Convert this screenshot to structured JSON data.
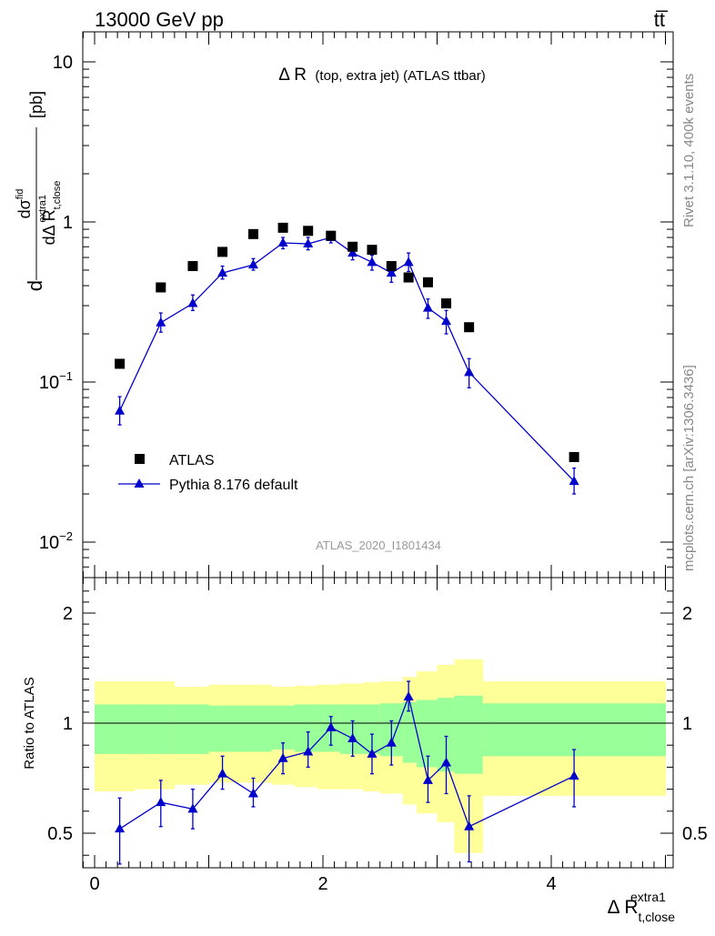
{
  "header": {
    "left": "13000 GeV pp",
    "right": "tt̅"
  },
  "chart_data": {
    "type": "scatter",
    "title": "Δ R",
    "title_small": "(top, extra jet) (ATLAS ttbar)",
    "ylabel": "[pb]",
    "ylabel_num": "dσ",
    "ylabel_num_sup": "fid",
    "ylabel_den": "dΔ R",
    "ylabel_den_sub": "t,close",
    "ylabel_den_sup": "extra1",
    "xlabel": "Δ R",
    "xlabel_sub": "t,close",
    "xlabel_sup": "extra1",
    "ratio_ylabel": "Ratio to ATLAS",
    "analysis_label": "ATLAS_2020_I1801434",
    "side_label_top": "Rivet 3.1.10,  400k events",
    "side_label_bottom": "mcplots.cern.ch [arXiv:1306.3436]",
    "xlim": [
      -0.15,
      5.1
    ],
    "ylim": [
      0.006,
      16
    ],
    "ratio_ylim": [
      0.35,
      2.3
    ],
    "y_scale": "log",
    "main_y_ticks": [
      {
        "v": 10,
        "base": "10",
        "exp": ""
      },
      {
        "v": 1,
        "base": "1",
        "exp": ""
      },
      {
        "v": 0.1,
        "base": "10",
        "exp": "−1"
      },
      {
        "v": 0.01,
        "base": "10",
        "exp": "−2"
      }
    ],
    "ratio_y_ticks": [
      "0.5",
      "1",
      "2"
    ],
    "x_ticks": [
      "0",
      "2",
      "4"
    ],
    "legend": [
      "ATLAS",
      "Pythia 8.176 default"
    ],
    "legend_position": "bottom-left",
    "bins": [
      {
        "lo": 0.0,
        "hi": 0.35,
        "x": 0.22,
        "data": 0.13,
        "mc": 0.066,
        "mc_lo": 0.054,
        "mc_hi": 0.081,
        "ratio": 0.52,
        "r_lo": 0.36,
        "r_hi": 0.66,
        "band1_lo": 0.86,
        "band1_hi": 1.17,
        "band2_lo": 0.69,
        "band2_hi": 1.38
      },
      {
        "lo": 0.35,
        "hi": 0.7,
        "x": 0.58,
        "data": 0.39,
        "mc": 0.235,
        "mc_lo": 0.205,
        "mc_hi": 0.27,
        "ratio": 0.64,
        "r_lo": 0.53,
        "r_hi": 0.74,
        "band1_lo": 0.86,
        "band1_hi": 1.17,
        "band2_lo": 0.7,
        "band2_hi": 1.38
      },
      {
        "lo": 0.7,
        "hi": 1.0,
        "x": 0.86,
        "data": 0.53,
        "mc": 0.31,
        "mc_lo": 0.28,
        "mc_hi": 0.35,
        "ratio": 0.61,
        "r_lo": 0.52,
        "r_hi": 0.7,
        "band1_lo": 0.86,
        "band1_hi": 1.17,
        "band2_lo": 0.72,
        "band2_hi": 1.33
      },
      {
        "lo": 1.0,
        "hi": 1.25,
        "x": 1.12,
        "data": 0.65,
        "mc": 0.48,
        "mc_lo": 0.44,
        "mc_hi": 0.53,
        "ratio": 0.77,
        "r_lo": 0.7,
        "r_hi": 0.85,
        "band1_lo": 0.87,
        "band1_hi": 1.16,
        "band2_lo": 0.73,
        "band2_hi": 1.35
      },
      {
        "lo": 1.25,
        "hi": 1.55,
        "x": 1.39,
        "data": 0.84,
        "mc": 0.54,
        "mc_lo": 0.5,
        "mc_hi": 0.59,
        "ratio": 0.68,
        "r_lo": 0.62,
        "r_hi": 0.75,
        "band1_lo": 0.87,
        "band1_hi": 1.16,
        "band2_lo": 0.73,
        "band2_hi": 1.35
      },
      {
        "lo": 1.55,
        "hi": 1.75,
        "x": 1.65,
        "data": 0.92,
        "mc": 0.74,
        "mc_lo": 0.68,
        "mc_hi": 0.8,
        "ratio": 0.84,
        "r_lo": 0.77,
        "r_hi": 0.91,
        "band1_lo": 0.88,
        "band1_hi": 1.16,
        "band2_lo": 0.72,
        "band2_hi": 1.33
      },
      {
        "lo": 1.75,
        "hi": 1.95,
        "x": 1.87,
        "data": 0.88,
        "mc": 0.73,
        "mc_lo": 0.67,
        "mc_hi": 0.8,
        "ratio": 0.87,
        "r_lo": 0.8,
        "r_hi": 0.96,
        "band1_lo": 0.87,
        "band1_hi": 1.17,
        "band2_lo": 0.71,
        "band2_hi": 1.34
      },
      {
        "lo": 1.95,
        "hi": 2.15,
        "x": 2.07,
        "data": 0.82,
        "mc": 0.8,
        "mc_lo": 0.74,
        "mc_hi": 0.87,
        "ratio": 0.98,
        "r_lo": 0.9,
        "r_hi": 1.06,
        "band1_lo": 0.87,
        "band1_hi": 1.17,
        "band2_lo": 0.7,
        "band2_hi": 1.35
      },
      {
        "lo": 2.15,
        "hi": 2.35,
        "x": 2.26,
        "data": 0.7,
        "mc": 0.64,
        "mc_lo": 0.58,
        "mc_hi": 0.71,
        "ratio": 0.93,
        "r_lo": 0.85,
        "r_hi": 1.02,
        "band1_lo": 0.86,
        "band1_hi": 1.17,
        "band2_lo": 0.7,
        "band2_hi": 1.36
      },
      {
        "lo": 2.35,
        "hi": 2.5,
        "x": 2.43,
        "data": 0.67,
        "mc": 0.56,
        "mc_lo": 0.5,
        "mc_hi": 0.62,
        "ratio": 0.86,
        "r_lo": 0.77,
        "r_hi": 0.95,
        "band1_lo": 0.86,
        "band1_hi": 1.17,
        "band2_lo": 0.69,
        "band2_hi": 1.37
      },
      {
        "lo": 2.5,
        "hi": 2.7,
        "x": 2.6,
        "data": 0.53,
        "mc": 0.48,
        "mc_lo": 0.42,
        "mc_hi": 0.54,
        "ratio": 0.91,
        "r_lo": 0.81,
        "r_hi": 1.02,
        "band1_lo": 0.85,
        "band1_hi": 1.18,
        "band2_lo": 0.68,
        "band2_hi": 1.38
      },
      {
        "lo": 2.7,
        "hi": 2.82,
        "x": 2.75,
        "data": 0.45,
        "mc": 0.56,
        "mc_lo": 0.49,
        "mc_hi": 0.64,
        "ratio": 1.24,
        "r_lo": 1.11,
        "r_hi": 1.38,
        "band1_lo": 0.82,
        "band1_hi": 1.19,
        "band2_lo": 0.63,
        "band2_hi": 1.42
      },
      {
        "lo": 2.82,
        "hi": 3.0,
        "x": 2.92,
        "data": 0.42,
        "mc": 0.29,
        "mc_lo": 0.25,
        "mc_hi": 0.33,
        "ratio": 0.74,
        "r_lo": 0.64,
        "r_hi": 0.85,
        "band1_lo": 0.8,
        "band1_hi": 1.21,
        "band2_lo": 0.59,
        "band2_hi": 1.47
      },
      {
        "lo": 3.0,
        "hi": 3.15,
        "x": 3.08,
        "data": 0.31,
        "mc": 0.24,
        "mc_lo": 0.2,
        "mc_hi": 0.28,
        "ratio": 0.82,
        "r_lo": 0.68,
        "r_hi": 0.94,
        "band1_lo": 0.78,
        "band1_hi": 1.23,
        "band2_lo": 0.55,
        "band2_hi": 1.53
      },
      {
        "lo": 3.15,
        "hi": 3.4,
        "x": 3.28,
        "data": 0.22,
        "mc": 0.115,
        "mc_lo": 0.092,
        "mc_hi": 0.14,
        "ratio": 0.53,
        "r_lo": 0.37,
        "r_hi": 0.67,
        "band1_lo": 0.77,
        "band1_hi": 1.25,
        "band2_lo": 0.41,
        "band2_hi": 1.58
      },
      {
        "lo": 3.4,
        "hi": 5.0,
        "x": 4.2,
        "data": 0.034,
        "mc": 0.024,
        "mc_lo": 0.02,
        "mc_hi": 0.029,
        "ratio": 0.76,
        "r_lo": 0.62,
        "r_hi": 0.88,
        "band1_lo": 0.85,
        "band1_hi": 1.18,
        "band2_lo": 0.67,
        "band2_hi": 1.38
      }
    ]
  },
  "colors": {
    "data": "#000000",
    "mc": "#0000cc",
    "band_inner": "#99ff99",
    "band_outer": "#ffff99",
    "side_text": "#888888"
  }
}
